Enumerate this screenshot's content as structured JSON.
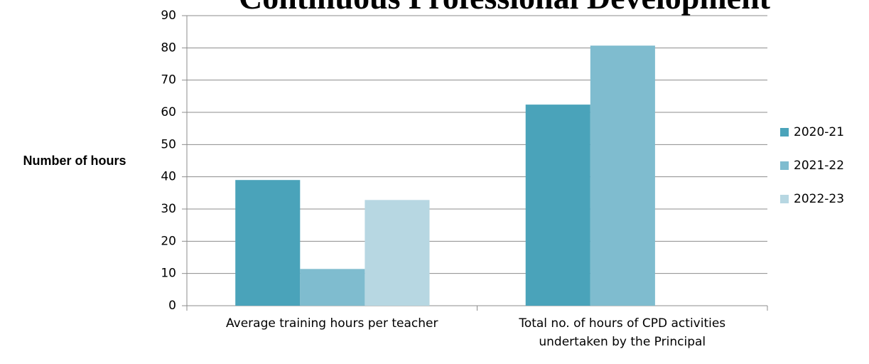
{
  "chart_data": {
    "type": "bar",
    "title": "Continuous Professional Development",
    "y_label": "Number of hours",
    "categories": [
      "Average training hours per teacher",
      "Total no. of hours of CPD activities undertaken by the Principal"
    ],
    "series": [
      {
        "name": "2020-21",
        "color": "#4aa3ba",
        "values": [
          39,
          62.4
        ]
      },
      {
        "name": "2021-22",
        "color": "#7fbccf",
        "values": [
          11.4,
          80.7
        ]
      },
      {
        "name": "2022-23",
        "color": "#b7d7e2",
        "values": [
          32.8,
          null
        ]
      }
    ],
    "ylim": [
      0,
      90
    ],
    "yticks": [
      0,
      10,
      20,
      30,
      40,
      50,
      60,
      70,
      80,
      90
    ],
    "grid": true,
    "legend": "right"
  }
}
